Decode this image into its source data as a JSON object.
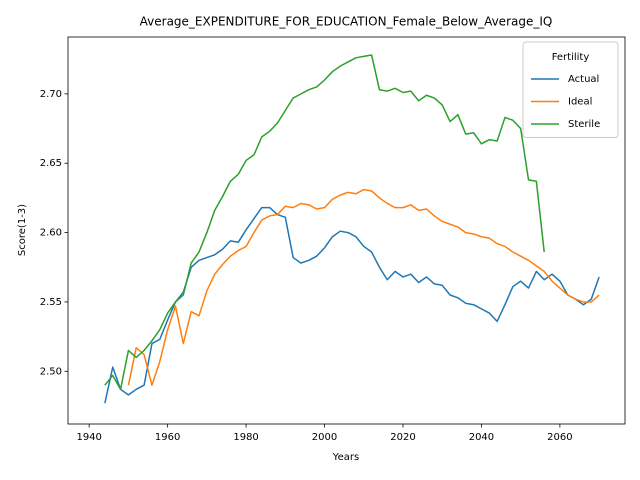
{
  "chart_data": {
    "type": "line",
    "title": "Average_EXPENDITURE_FOR_EDUCATION_Female_Below_Average_IQ",
    "xlabel": "Years",
    "ylabel": "Score(1-3)",
    "x": [
      1944,
      1946,
      1948,
      1950,
      1952,
      1954,
      1956,
      1958,
      1960,
      1962,
      1964,
      1966,
      1968,
      1970,
      1972,
      1974,
      1976,
      1978,
      1980,
      1982,
      1984,
      1986,
      1988,
      1990,
      1992,
      1994,
      1996,
      1998,
      2000,
      2002,
      2004,
      2006,
      2008,
      2010,
      2012,
      2014,
      2016,
      2018,
      2020,
      2022,
      2024,
      2026,
      2028,
      2030,
      2032,
      2034,
      2036,
      2038,
      2040,
      2042,
      2044,
      2046,
      2048,
      2050,
      2052,
      2054,
      2056,
      2058,
      2060,
      2062,
      2064,
      2066,
      2068,
      2070
    ],
    "series": [
      {
        "name": "Actual",
        "color": "#1f77b4",
        "values": [
          2.477,
          2.503,
          2.487,
          2.483,
          2.487,
          2.49,
          2.52,
          2.523,
          2.537,
          2.55,
          2.557,
          2.575,
          2.58,
          2.582,
          2.584,
          2.588,
          2.594,
          2.593,
          2.602,
          2.61,
          2.618,
          2.618,
          2.613,
          2.611,
          2.582,
          2.578,
          2.58,
          2.583,
          2.589,
          2.597,
          2.601,
          2.6,
          2.597,
          2.59,
          2.586,
          2.575,
          2.566,
          2.572,
          2.568,
          2.57,
          2.564,
          2.568,
          2.563,
          2.562,
          2.555,
          2.553,
          2.549,
          2.548,
          2.545,
          2.542,
          2.536,
          2.548,
          2.561,
          2.565,
          2.56,
          2.572,
          2.566,
          2.57,
          2.565,
          2.555,
          2.552,
          2.548,
          2.552,
          2.568
        ]
      },
      {
        "name": "Ideal",
        "color": "#ff7f0e",
        "values": [
          null,
          null,
          null,
          2.49,
          2.517,
          2.512,
          2.49,
          2.507,
          2.53,
          2.547,
          2.52,
          2.543,
          2.54,
          2.558,
          2.57,
          2.577,
          2.583,
          2.587,
          2.59,
          2.6,
          2.609,
          2.612,
          2.613,
          2.619,
          2.618,
          2.621,
          2.62,
          2.617,
          2.618,
          2.624,
          2.627,
          2.629,
          2.628,
          2.631,
          2.63,
          2.625,
          2.621,
          2.618,
          2.618,
          2.62,
          2.616,
          2.617,
          2.612,
          2.608,
          2.606,
          2.604,
          2.6,
          2.599,
          2.597,
          2.596,
          2.592,
          2.59,
          2.586,
          2.583,
          2.58,
          2.576,
          2.572,
          2.565,
          2.56,
          2.555,
          2.552,
          2.55,
          2.55,
          2.555
        ]
      },
      {
        "name": "Sterile",
        "color": "#2ca02c",
        "values": [
          2.49,
          2.497,
          2.487,
          2.515,
          2.51,
          2.515,
          2.522,
          2.53,
          2.542,
          2.55,
          2.555,
          2.578,
          2.586,
          2.6,
          2.616,
          2.626,
          2.637,
          2.642,
          2.652,
          2.656,
          2.669,
          2.673,
          2.679,
          2.688,
          2.697,
          2.7,
          2.703,
          2.705,
          2.71,
          2.716,
          2.72,
          2.723,
          2.726,
          2.727,
          2.728,
          2.703,
          2.702,
          2.704,
          2.701,
          2.702,
          2.695,
          2.699,
          2.697,
          2.692,
          2.68,
          2.685,
          2.671,
          2.672,
          2.664,
          2.667,
          2.666,
          2.683,
          2.681,
          2.675,
          2.638,
          2.637,
          2.586,
          null,
          null,
          null,
          null,
          null,
          null,
          null
        ]
      }
    ],
    "xlim": [
      1934.6,
      2076.6
    ],
    "xticks": [
      1940,
      1960,
      1980,
      2000,
      2020,
      2040,
      2060
    ],
    "ylim": [
      2.462,
      2.741
    ],
    "yticks": [
      {
        "value": 2.5,
        "label": "2.50"
      },
      2.55,
      {
        "value": 2.6,
        "label": "2.60"
      },
      2.65,
      {
        "value": 2.7,
        "label": "2.70"
      }
    ],
    "grid": false,
    "legend": {
      "title": "Fertility",
      "position": "upper right"
    }
  }
}
